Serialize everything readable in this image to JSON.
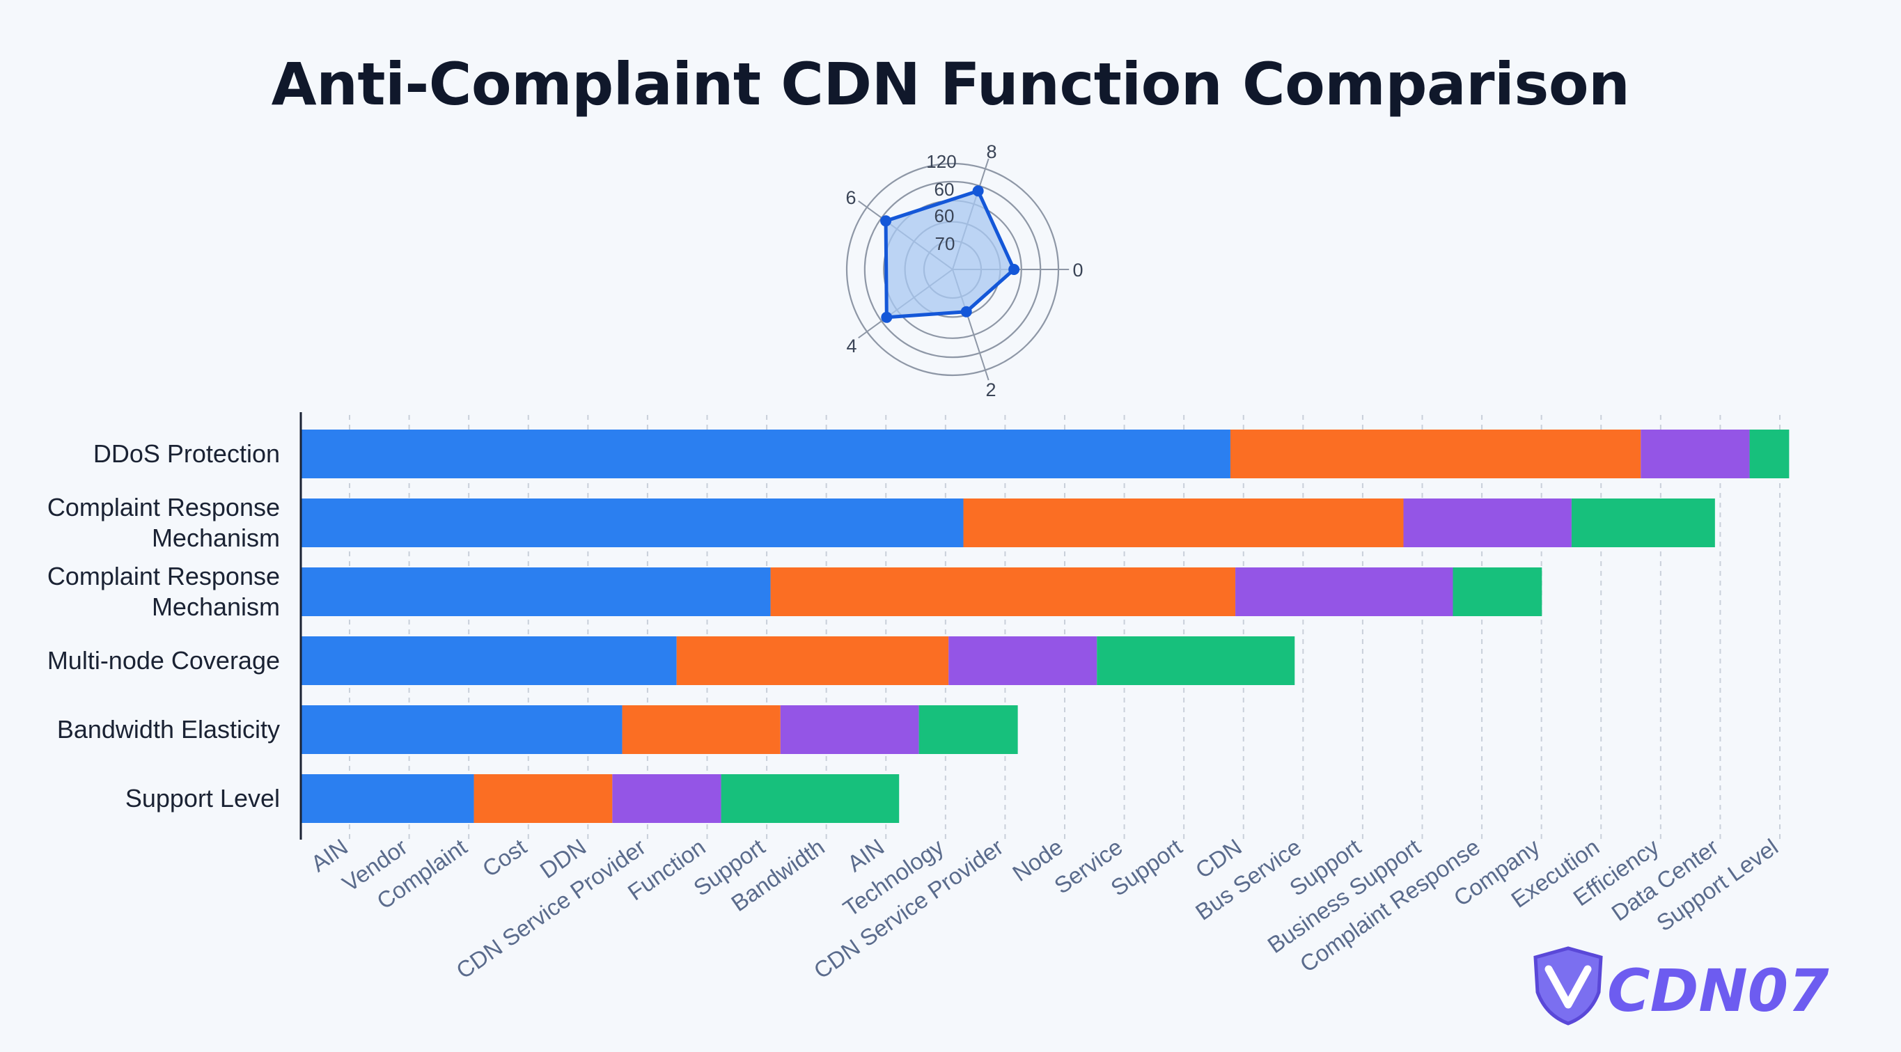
{
  "title": "Anti-Complaint CDN Function Comparison",
  "colors": {
    "blue": "#2b7ff0",
    "orange": "#fb6e23",
    "purple": "#9455e6",
    "green": "#17c07c",
    "radar_stroke": "#1457d8",
    "radar_fill": "#a8c8f2",
    "text": "#1a2233",
    "axis_label": "#5a6b8c"
  },
  "radar": {
    "angle_labels": [
      "8",
      "0",
      "2",
      "4",
      "6"
    ],
    "ring_labels": [
      "120",
      "60",
      "60",
      "70"
    ],
    "values": [
      0.78,
      0.58,
      0.42,
      0.77,
      0.78
    ]
  },
  "chart_data": {
    "type": "bar",
    "stacked": true,
    "orientation": "horizontal",
    "categories": [
      "DDoS Protection",
      "Complaint Response Mechanism",
      "Complaint Response Mechanism",
      "Multi-node Coverage",
      "Bandwidth Elasticity",
      "Support Level"
    ],
    "series": [
      {
        "name": "blue",
        "color": "#2b7ff0",
        "values": [
          18.8,
          13.4,
          9.5,
          7.6,
          6.5,
          3.5
        ]
      },
      {
        "name": "orange",
        "color": "#fb6e23",
        "values": [
          8.3,
          8.9,
          9.4,
          5.5,
          3.2,
          2.8
        ]
      },
      {
        "name": "purple",
        "color": "#9455e6",
        "values": [
          2.2,
          3.4,
          4.4,
          3.0,
          2.8,
          2.2
        ]
      },
      {
        "name": "green",
        "color": "#17c07c",
        "values": [
          0.8,
          2.9,
          1.8,
          4.0,
          2.0,
          3.6
        ]
      }
    ],
    "xlim": [
      0,
      30.25
    ],
    "grid": true,
    "xtick_labels": [
      "AIN",
      "Vendor",
      "Complaint",
      "Cost",
      "DDN",
      "CDN Service Provider",
      "Function",
      "Support",
      "Bandwidth",
      "AIN",
      "Technology",
      "CDN Service Provider",
      "Node",
      "Service",
      "Support",
      "CDN",
      "Bus Service",
      "Support",
      "Business Support",
      "Complaint Response",
      "Company",
      "Execution",
      "Efficiency",
      "Data Center",
      "Support Level"
    ]
  },
  "logo": {
    "text": "CDN07"
  }
}
